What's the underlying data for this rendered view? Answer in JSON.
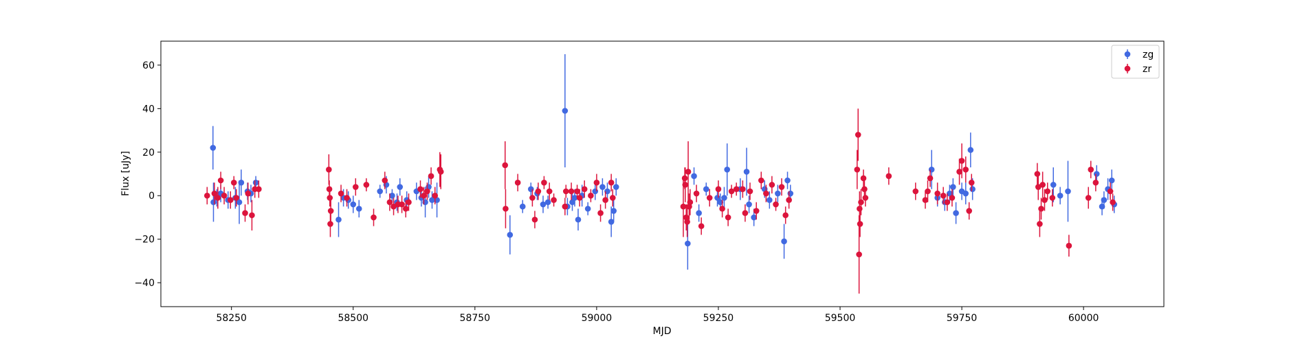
{
  "chart_data": {
    "type": "scatter",
    "title": "",
    "xlabel": "MJD",
    "ylabel": "Flux [uJy]",
    "xlim": [
      58105,
      60165
    ],
    "ylim": [
      -51,
      71
    ],
    "xticks": [
      58250,
      58500,
      58750,
      59000,
      59250,
      59500,
      59750,
      60000
    ],
    "xtick_labels": [
      "58250",
      "58500",
      "58750",
      "59000",
      "59250",
      "59500",
      "59750",
      "60000"
    ],
    "yticks": [
      -40,
      -20,
      0,
      20,
      40,
      60
    ],
    "ytick_labels": [
      "−40",
      "−20",
      "0",
      "20",
      "40",
      "60"
    ],
    "grid": false,
    "legend_position": "top-right",
    "series": [
      {
        "name": "zg",
        "color": "#4169e1",
        "points": [
          [
            58212,
            22,
            10
          ],
          [
            58213,
            -3,
            9
          ],
          [
            58220,
            -1,
            4
          ],
          [
            58228,
            1,
            4
          ],
          [
            58243,
            -2,
            4
          ],
          [
            58258,
            -1,
            5
          ],
          [
            58266,
            -3,
            10
          ],
          [
            58270,
            6,
            6
          ],
          [
            58283,
            2,
            4
          ],
          [
            58290,
            1,
            4
          ],
          [
            58300,
            6,
            3
          ],
          [
            58470,
            -11,
            8
          ],
          [
            58480,
            -1,
            4
          ],
          [
            58490,
            -2,
            4
          ],
          [
            58500,
            -4,
            4
          ],
          [
            58512,
            -6,
            4
          ],
          [
            58555,
            2,
            3
          ],
          [
            58568,
            5,
            4
          ],
          [
            58580,
            0,
            3
          ],
          [
            58590,
            -3,
            4
          ],
          [
            58596,
            4,
            4
          ],
          [
            58610,
            -2,
            4
          ],
          [
            58630,
            2,
            4
          ],
          [
            58640,
            -1,
            4
          ],
          [
            58648,
            -3,
            7
          ],
          [
            58655,
            4,
            5
          ],
          [
            58662,
            -2,
            4
          ],
          [
            58672,
            -2,
            8
          ],
          [
            58822,
            -18,
            9
          ],
          [
            58848,
            -5,
            3
          ],
          [
            58865,
            3,
            3
          ],
          [
            58878,
            1,
            3
          ],
          [
            58890,
            -4,
            4
          ],
          [
            58900,
            -3,
            3
          ],
          [
            58935,
            39,
            26
          ],
          [
            58940,
            -5,
            4
          ],
          [
            58950,
            -3,
            4
          ],
          [
            58955,
            -1,
            4
          ],
          [
            58962,
            -11,
            5
          ],
          [
            58970,
            0,
            5
          ],
          [
            58982,
            -6,
            3
          ],
          [
            58997,
            2,
            4
          ],
          [
            59012,
            4,
            4
          ],
          [
            59022,
            2,
            4
          ],
          [
            59030,
            -12,
            7
          ],
          [
            59035,
            -7,
            5
          ],
          [
            59040,
            4,
            4
          ],
          [
            59187,
            -22,
            12
          ],
          [
            59200,
            9,
            4
          ],
          [
            59210,
            -8,
            4
          ],
          [
            59225,
            3,
            3
          ],
          [
            59248,
            -1,
            4
          ],
          [
            59254,
            -3,
            4
          ],
          [
            59262,
            -1,
            5
          ],
          [
            59268,
            12,
            12
          ],
          [
            59295,
            3,
            5
          ],
          [
            59308,
            11,
            11
          ],
          [
            59313,
            -4,
            4
          ],
          [
            59323,
            -10,
            4
          ],
          [
            59345,
            3,
            4
          ],
          [
            59355,
            -2,
            4
          ],
          [
            59372,
            1,
            4
          ],
          [
            59385,
            -21,
            8
          ],
          [
            59392,
            7,
            4
          ],
          [
            59398,
            1,
            4
          ],
          [
            59688,
            12,
            9
          ],
          [
            59700,
            -1,
            4
          ],
          [
            59715,
            -3,
            4
          ],
          [
            59725,
            1,
            4
          ],
          [
            59732,
            4,
            4
          ],
          [
            59738,
            -8,
            5
          ],
          [
            59750,
            2,
            4
          ],
          [
            59758,
            1,
            5
          ],
          [
            59768,
            21,
            8
          ],
          [
            59772,
            3,
            5
          ],
          [
            59938,
            5,
            8
          ],
          [
            59952,
            0,
            4
          ],
          [
            59968,
            2,
            14
          ],
          [
            60027,
            10,
            4
          ],
          [
            60038,
            -5,
            4
          ],
          [
            60042,
            -2,
            4
          ],
          [
            60050,
            3,
            5
          ],
          [
            60058,
            7,
            5
          ],
          [
            60063,
            -4,
            4
          ]
        ]
      },
      {
        "name": "zr",
        "color": "#dc143c",
        "points": [
          [
            58200,
            0,
            4
          ],
          [
            58215,
            1,
            5
          ],
          [
            58222,
            -1,
            5
          ],
          [
            58228,
            7,
            4
          ],
          [
            58235,
            0,
            4
          ],
          [
            58248,
            -2,
            4
          ],
          [
            58255,
            6,
            3
          ],
          [
            58260,
            -1,
            4
          ],
          [
            58278,
            -8,
            4
          ],
          [
            58284,
            1,
            5
          ],
          [
            58292,
            -9,
            7
          ],
          [
            58298,
            3,
            4
          ],
          [
            58306,
            3,
            4
          ],
          [
            58450,
            12,
            7
          ],
          [
            58451,
            3,
            4
          ],
          [
            58452,
            -1,
            4
          ],
          [
            58453,
            -13,
            6
          ],
          [
            58454,
            -7,
            5
          ],
          [
            58475,
            1,
            4
          ],
          [
            58487,
            -1,
            4
          ],
          [
            58505,
            4,
            4
          ],
          [
            58527,
            5,
            3
          ],
          [
            58542,
            -10,
            4
          ],
          [
            58565,
            7,
            4
          ],
          [
            58575,
            -3,
            4
          ],
          [
            58583,
            -5,
            4
          ],
          [
            58592,
            -4,
            4
          ],
          [
            58600,
            -4,
            4
          ],
          [
            58608,
            -6,
            4
          ],
          [
            58614,
            -3,
            4
          ],
          [
            58638,
            3,
            4
          ],
          [
            58645,
            0,
            4
          ],
          [
            58652,
            2,
            4
          ],
          [
            58660,
            9,
            4
          ],
          [
            58668,
            0,
            4
          ],
          [
            58678,
            12,
            8
          ],
          [
            58680,
            11,
            8
          ],
          [
            58812,
            14,
            11
          ],
          [
            58813,
            -6,
            9
          ],
          [
            58838,
            6,
            4
          ],
          [
            58868,
            -1,
            4
          ],
          [
            58873,
            -11,
            4
          ],
          [
            58880,
            2,
            4
          ],
          [
            58892,
            6,
            3
          ],
          [
            58903,
            2,
            4
          ],
          [
            58912,
            -2,
            3
          ],
          [
            58935,
            -5,
            4
          ],
          [
            58937,
            2,
            3
          ],
          [
            58948,
            2,
            4
          ],
          [
            58960,
            2,
            3
          ],
          [
            58965,
            -1,
            4
          ],
          [
            58975,
            3,
            4
          ],
          [
            58988,
            0,
            3
          ],
          [
            59000,
            6,
            4
          ],
          [
            59008,
            -8,
            4
          ],
          [
            59018,
            -2,
            4
          ],
          [
            59030,
            6,
            4
          ],
          [
            59033,
            -1,
            4
          ],
          [
            59178,
            -5,
            14
          ],
          [
            59181,
            8,
            5
          ],
          [
            59182,
            5,
            8
          ],
          [
            59184,
            -10,
            6
          ],
          [
            59186,
            -12,
            7
          ],
          [
            59188,
            11,
            14
          ],
          [
            59190,
            -5,
            6
          ],
          [
            59192,
            -3,
            6
          ],
          [
            59205,
            1,
            4
          ],
          [
            59215,
            -14,
            4
          ],
          [
            59232,
            -1,
            4
          ],
          [
            59250,
            3,
            4
          ],
          [
            59258,
            -6,
            4
          ],
          [
            59270,
            -10,
            4
          ],
          [
            59277,
            2,
            3
          ],
          [
            59287,
            3,
            3
          ],
          [
            59300,
            3,
            4
          ],
          [
            59305,
            -8,
            4
          ],
          [
            59315,
            2,
            4
          ],
          [
            59328,
            -7,
            4
          ],
          [
            59338,
            7,
            4
          ],
          [
            59348,
            1,
            4
          ],
          [
            59360,
            5,
            4
          ],
          [
            59368,
            -4,
            3
          ],
          [
            59380,
            4,
            4
          ],
          [
            59388,
            -9,
            4
          ],
          [
            59395,
            -2,
            4
          ],
          [
            59535,
            12,
            9
          ],
          [
            59537,
            28,
            12
          ],
          [
            59539,
            -27,
            18
          ],
          [
            59540,
            -6,
            8
          ],
          [
            59541,
            -13,
            6
          ],
          [
            59543,
            -3,
            6
          ],
          [
            59548,
            8,
            4
          ],
          [
            59550,
            3,
            4
          ],
          [
            59552,
            -1,
            4
          ],
          [
            59600,
            9,
            4
          ],
          [
            59655,
            2,
            4
          ],
          [
            59675,
            -2,
            4
          ],
          [
            59680,
            2,
            5
          ],
          [
            59685,
            8,
            4
          ],
          [
            59700,
            1,
            5
          ],
          [
            59712,
            0,
            4
          ],
          [
            59720,
            -3,
            4
          ],
          [
            59730,
            -1,
            4
          ],
          [
            59745,
            11,
            6
          ],
          [
            59750,
            16,
            8
          ],
          [
            59758,
            12,
            6
          ],
          [
            59765,
            -7,
            4
          ],
          [
            59770,
            6,
            4
          ],
          [
            59905,
            10,
            5
          ],
          [
            59907,
            4,
            6
          ],
          [
            59910,
            -13,
            6
          ],
          [
            59913,
            -6,
            5
          ],
          [
            59916,
            5,
            6
          ],
          [
            59920,
            -2,
            5
          ],
          [
            59926,
            2,
            4
          ],
          [
            59936,
            -1,
            4
          ],
          [
            59970,
            -23,
            5
          ],
          [
            60010,
            -1,
            5
          ],
          [
            60015,
            12,
            4
          ],
          [
            60025,
            6,
            4
          ],
          [
            60055,
            2,
            4
          ],
          [
            60060,
            -3,
            4
          ]
        ]
      }
    ]
  }
}
